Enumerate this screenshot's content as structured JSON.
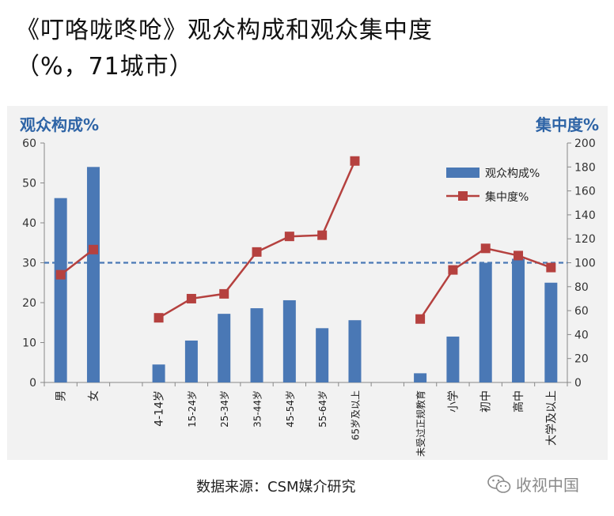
{
  "page": {
    "title_line1": "《叮咯咙咚呛》观众构成和观众集中度",
    "title_line2": "（%，71城市）",
    "source": "数据来源：CSM媒介研究",
    "watermark": "收视中国"
  },
  "chart_data": {
    "type": "bar",
    "title": "《叮咯咙咚呛》观众构成和观众集中度（%，71城市）",
    "left_axis_label": "观众构成%",
    "right_axis_label": "集中度%",
    "categories": [
      "男",
      "女",
      "4-14岁",
      "15-24岁",
      "25-34岁",
      "35-44岁",
      "45-54岁",
      "55-64岁",
      "65岁及以上",
      "未受过正规教育",
      "小学",
      "初中",
      "高中",
      "大学及以上"
    ],
    "category_groups": [
      [
        0,
        1
      ],
      [
        2,
        3,
        4,
        5,
        6,
        7,
        8
      ],
      [
        9,
        10,
        11,
        12,
        13
      ]
    ],
    "series": [
      {
        "name": "观众构成%",
        "type": "bar",
        "axis": "left",
        "color": "#4a78b5",
        "values": [
          46.2,
          54.0,
          4.5,
          10.5,
          17.2,
          18.6,
          20.6,
          13.6,
          15.6,
          2.3,
          11.5,
          30.0,
          31.0,
          25.0
        ]
      },
      {
        "name": "集中度%",
        "type": "line",
        "axis": "right",
        "color": "#b5413f",
        "values": [
          90,
          111,
          54,
          70,
          74,
          109,
          122,
          123,
          185,
          53,
          94,
          112,
          106,
          96
        ]
      }
    ],
    "y_left": {
      "min": 0,
      "max": 60,
      "ticks": [
        0,
        10,
        20,
        30,
        40,
        50,
        60
      ]
    },
    "y_right": {
      "min": 0,
      "max": 200,
      "ticks": [
        0,
        20,
        40,
        60,
        80,
        100,
        120,
        140,
        160,
        180,
        200
      ]
    },
    "reference_line": {
      "axis": "right",
      "value": 100,
      "style": "dashed",
      "color": "#4a78b5"
    },
    "legend_position": "top-right",
    "axis_label_color": "#2e64a6"
  }
}
